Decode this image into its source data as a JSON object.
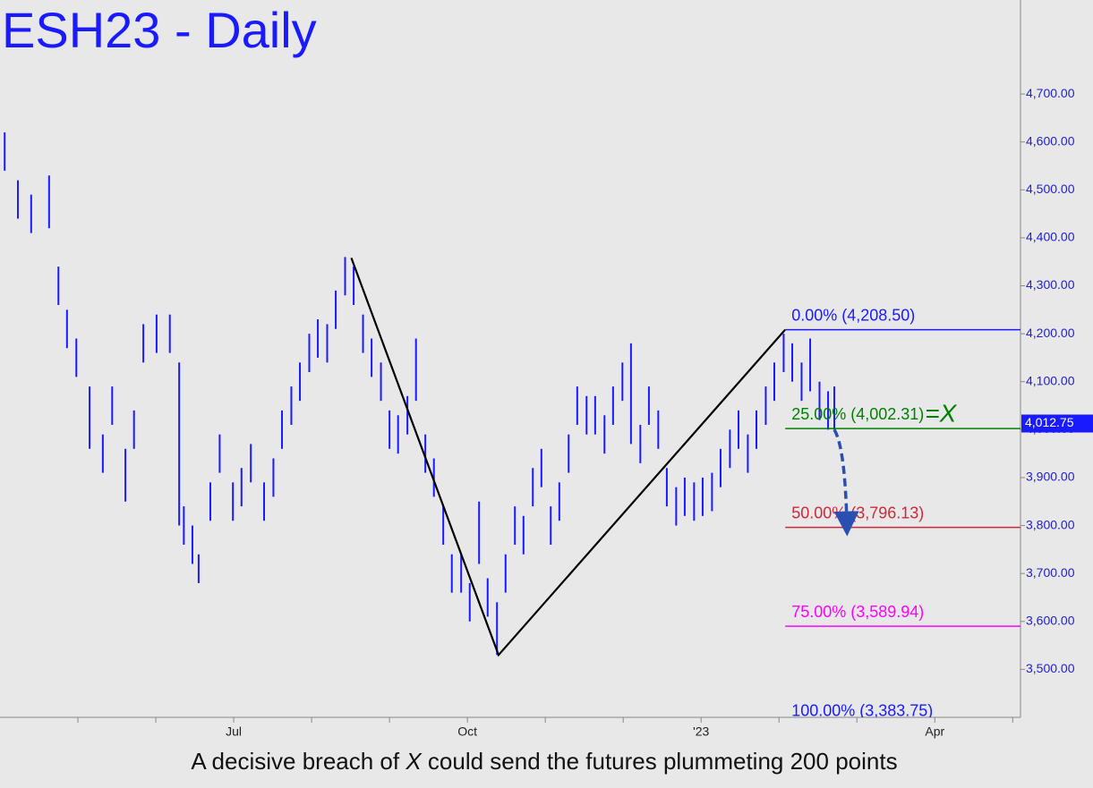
{
  "chart_data": {
    "type": "hilo",
    "title": "ESH23 - Daily",
    "caption": [
      "A decisive breach of ",
      "X",
      " could send the futures plummeting 200 points"
    ],
    "color": "#1a1aff",
    "x": [
      4.06,
      4.23,
      4.4,
      4.63,
      4.75,
      4.86,
      4.98,
      5.15,
      5.32,
      5.44,
      5.61,
      5.72,
      5.84,
      6.01,
      6.18,
      6.3,
      6.36,
      6.47,
      6.55,
      6.7,
      6.82,
      6.99,
      7.1,
      7.22,
      7.39,
      7.51,
      7.62,
      7.74,
      7.85,
      7.97,
      8.08,
      8.2,
      8.31,
      8.43,
      8.54,
      8.66,
      8.77,
      8.89,
      9.0,
      9.11,
      9.23,
      9.34,
      9.46,
      9.57,
      9.69,
      9.8,
      9.92,
      10.03,
      10.15,
      10.26,
      10.38,
      10.49,
      10.61,
      10.72,
      10.84,
      10.95,
      11.07,
      11.18,
      11.3,
      11.41,
      11.53,
      11.64,
      11.76,
      11.87,
      11.99,
      12.1,
      12.22,
      12.33,
      12.45,
      12.56,
      12.68,
      12.79,
      12.91,
      13.02,
      13.14,
      13.25,
      13.37,
      13.48,
      13.6,
      13.71,
      13.83,
      13.94,
      14.06,
      14.17,
      14.29,
      14.4,
      14.52,
      14.63,
      14.71
    ],
    "high": [
      4620,
      4520,
      4490,
      4530,
      4340,
      4250,
      4190,
      4090,
      3990,
      4090,
      3960,
      4040,
      4220,
      4240,
      4240,
      4140,
      3840,
      3800,
      3740,
      3890,
      3990,
      3890,
      3920,
      3970,
      3890,
      3940,
      4040,
      4090,
      4140,
      4200,
      4230,
      4220,
      4290,
      4360,
      4340,
      4240,
      4190,
      4140,
      4040,
      4030,
      4070,
      4190,
      3990,
      3940,
      3840,
      3740,
      3740,
      3680,
      3850,
      3690,
      3640,
      3740,
      3840,
      3820,
      3920,
      3960,
      3840,
      3890,
      3990,
      4090,
      4070,
      4070,
      4030,
      4090,
      4140,
      4180,
      4010,
      4090,
      4040,
      3920,
      3880,
      3900,
      3890,
      3900,
      3910,
      3960,
      4000,
      4040,
      3990,
      4040,
      4090,
      4140,
      4200,
      4180,
      4140,
      4190,
      4100,
      4080,
      4090
    ],
    "low": [
      4540,
      4440,
      4410,
      4420,
      4260,
      4170,
      4110,
      3960,
      3910,
      4010,
      3850,
      3960,
      4140,
      4160,
      4160,
      3800,
      3760,
      3720,
      3680,
      3810,
      3910,
      3810,
      3840,
      3890,
      3810,
      3860,
      3960,
      4010,
      4060,
      4120,
      4150,
      4140,
      4210,
      4280,
      4260,
      4160,
      4110,
      4060,
      3960,
      3950,
      3990,
      4060,
      3910,
      3860,
      3760,
      3660,
      3660,
      3600,
      3720,
      3610,
      3530,
      3660,
      3760,
      3740,
      3840,
      3880,
      3760,
      3810,
      3910,
      4010,
      3990,
      3990,
      3950,
      4010,
      4060,
      3970,
      3930,
      4010,
      3960,
      3840,
      3800,
      3820,
      3810,
      3820,
      3830,
      3880,
      3920,
      3960,
      3910,
      3960,
      4010,
      4060,
      4120,
      4100,
      4060,
      4080,
      4020,
      4000,
      4000
    ],
    "trendline": {
      "x": [
        8.51,
        10.4,
        14.08
      ],
      "y": [
        4358,
        3530,
        4208.5
      ],
      "color": "#000000"
    },
    "levels": [
      {
        "value": 4208.5,
        "label": "0.00% (4,208.50)",
        "color": "#1a1aff"
      },
      {
        "value": 4002.31,
        "label": "25.00% (4,002.31)",
        "color": "#008000"
      },
      {
        "value": 3796.13,
        "label": "50.00% (3,796.13)",
        "color": "#cc2a3a"
      },
      {
        "value": 3589.94,
        "label": "75.00% (3,589.94)",
        "color": "#ff00ff"
      },
      {
        "value": 3383.75,
        "label": "100.00% (3,383.75)",
        "color": "#1a1aff"
      }
    ],
    "annotation": {
      "text": "=X",
      "color": "#008000"
    },
    "arrow_color": "#2a4fb0",
    "last_price": {
      "value": 4012.75,
      "label": "4,012.75",
      "color": "#1a1aff"
    },
    "xlim": [
      4,
      17.1
    ],
    "xticks": [
      {
        "value": 5,
        "label": null
      },
      {
        "value": 6,
        "label": null
      },
      {
        "value": 7,
        "label": "Jul"
      },
      {
        "value": 8,
        "label": null
      },
      {
        "value": 9,
        "label": null
      },
      {
        "value": 10,
        "label": "Oct"
      },
      {
        "value": 11,
        "label": null
      },
      {
        "value": 12,
        "label": null
      },
      {
        "value": 13,
        "label": "'23"
      },
      {
        "value": 14,
        "label": null
      },
      {
        "value": 15,
        "label": null
      },
      {
        "value": 16,
        "label": "Apr"
      },
      {
        "value": 17,
        "label": null
      }
    ],
    "ylim": [
      3400,
      4896
    ],
    "yticks": [
      {
        "value": 3500,
        "label": "3,500.00"
      },
      {
        "value": 3600,
        "label": "3,600.00"
      },
      {
        "value": 3700,
        "label": "3,700.00"
      },
      {
        "value": 3800,
        "label": "3,800.00"
      },
      {
        "value": 3900,
        "label": "3,900.00"
      },
      {
        "value": 4000,
        "label": "4,000.00"
      },
      {
        "value": 4100,
        "label": "4,100.00"
      },
      {
        "value": 4200,
        "label": "4,200.00"
      },
      {
        "value": 4300,
        "label": "4,300.00"
      },
      {
        "value": 4400,
        "label": "4,400.00"
      },
      {
        "value": 4500,
        "label": "4,500.00"
      },
      {
        "value": 4600,
        "label": "4,600.00"
      },
      {
        "value": 4700,
        "label": "4,700.00"
      }
    ]
  }
}
